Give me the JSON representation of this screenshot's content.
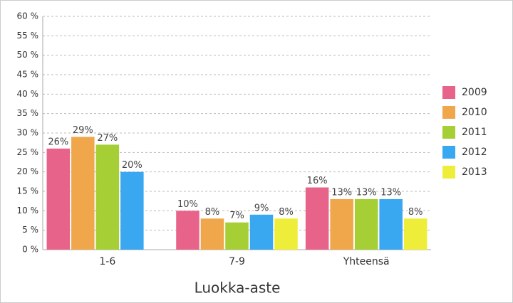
{
  "chart_data": {
    "type": "bar",
    "x_label": "Luokka-aste",
    "categories": [
      "1-6",
      "7-9",
      "Yhteensä"
    ],
    "series": [
      {
        "name": "2009",
        "color": "#e8638a",
        "values": [
          26,
          10,
          16
        ],
        "value_labels": [
          "26%",
          "10%",
          "16%"
        ]
      },
      {
        "name": "2010",
        "color": "#f0a64a",
        "values": [
          29,
          8,
          13
        ],
        "value_labels": [
          "29%",
          "8%",
          "13%"
        ]
      },
      {
        "name": "2011",
        "color": "#a5cf35",
        "values": [
          27,
          7,
          13
        ],
        "value_labels": [
          "27%",
          "7%",
          "13%"
        ]
      },
      {
        "name": "2012",
        "color": "#3aa8f0",
        "values": [
          20,
          9,
          13
        ],
        "value_labels": [
          "20%",
          "9%",
          "13%"
        ]
      },
      {
        "name": "2013",
        "color": "#eeee3a",
        "values": [
          null,
          8,
          8
        ],
        "value_labels": [
          null,
          "8%",
          "8%"
        ]
      }
    ],
    "ylim": [
      0,
      60
    ],
    "yticks": [
      {
        "value": 0,
        "label": "0 %"
      },
      {
        "value": 5,
        "label": "5 %"
      },
      {
        "value": 10,
        "label": "10 %"
      },
      {
        "value": 15,
        "label": "15 %"
      },
      {
        "value": 20,
        "label": "20 %"
      },
      {
        "value": 25,
        "label": "25 %"
      },
      {
        "value": 30,
        "label": "30 %"
      },
      {
        "value": 35,
        "label": "35 %"
      },
      {
        "value": 40,
        "label": "40 %"
      },
      {
        "value": 45,
        "label": "45 %"
      },
      {
        "value": 50,
        "label": "50 %"
      },
      {
        "value": 55,
        "label": "55 %"
      },
      {
        "value": 60,
        "label": "60 %"
      }
    ],
    "grid": true,
    "legend": "right"
  }
}
